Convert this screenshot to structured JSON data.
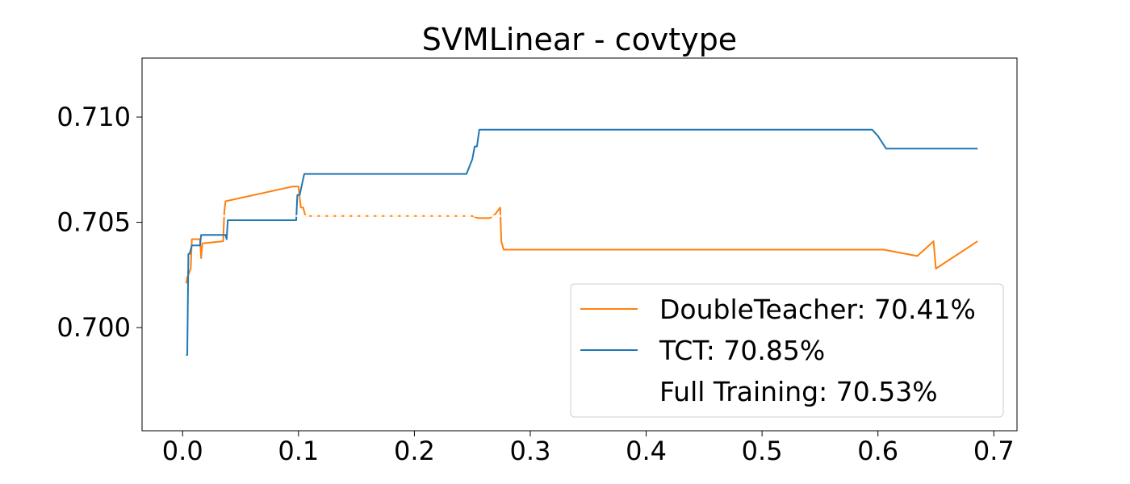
{
  "chart_data": {
    "type": "line",
    "title": "SVMLinear - covtype",
    "xlabel": "",
    "ylabel": "",
    "xlim": [
      -0.035,
      0.72
    ],
    "ylim": [
      0.6951,
      0.7128
    ],
    "x_ticks": [
      0.0,
      0.1,
      0.2,
      0.3,
      0.4,
      0.5,
      0.6,
      0.7
    ],
    "x_tick_labels": [
      "0.0",
      "0.1",
      "0.2",
      "0.3",
      "0.4",
      "0.5",
      "0.6",
      "0.7"
    ],
    "y_ticks": [
      0.7,
      0.705,
      0.71
    ],
    "y_tick_labels": [
      "0.700",
      "0.705",
      "0.710"
    ],
    "grid": false,
    "legend_position": "lower-right",
    "series": [
      {
        "name": "DoubleTeacher: 70.41%",
        "color": "#ff7f0e",
        "dashed": false,
        "x": [
          0.003,
          0.004,
          0.005,
          0.007,
          0.008,
          0.015,
          0.016,
          0.017,
          0.035,
          0.036,
          0.037,
          0.095,
          0.1,
          0.102,
          0.104,
          0.105,
          0.106,
          0.25,
          0.255,
          0.265,
          0.27,
          0.274,
          0.275,
          0.277,
          0.605,
          0.634,
          0.648,
          0.65,
          0.686
        ],
        "y": [
          0.7021,
          0.7024,
          0.7025,
          0.7028,
          0.7042,
          0.7042,
          0.7033,
          0.704,
          0.7041,
          0.7055,
          0.706,
          0.7067,
          0.7067,
          0.7057,
          0.7057,
          0.7055,
          0.7053,
          0.7053,
          0.7052,
          0.7052,
          0.7054,
          0.7057,
          0.7041,
          0.7037,
          0.7037,
          0.7034,
          0.7041,
          0.7028,
          0.7041
        ]
      },
      {
        "name": "TCT: 70.85%",
        "color": "#1f77b4",
        "dashed": false,
        "x": [
          0.003,
          0.004,
          0.005,
          0.006,
          0.008,
          0.015,
          0.016,
          0.037,
          0.038,
          0.039,
          0.098,
          0.099,
          0.101,
          0.103,
          0.105,
          0.245,
          0.25,
          0.252,
          0.254,
          0.256,
          0.595,
          0.6,
          0.607,
          0.686
        ],
        "y": [
          0.6987,
          0.6987,
          0.7035,
          0.7035,
          0.7039,
          0.7039,
          0.7044,
          0.7044,
          0.7042,
          0.7051,
          0.7051,
          0.7063,
          0.7063,
          0.7068,
          0.7073,
          0.7073,
          0.708,
          0.7086,
          0.7086,
          0.7094,
          0.7094,
          0.7091,
          0.7085,
          0.7085
        ]
      },
      {
        "name": "Full Training: 70.53%",
        "color": "#ffffff",
        "dashed": true,
        "x": [
          0.0,
          0.686
        ],
        "y": [
          0.7053,
          0.7053
        ]
      }
    ]
  }
}
